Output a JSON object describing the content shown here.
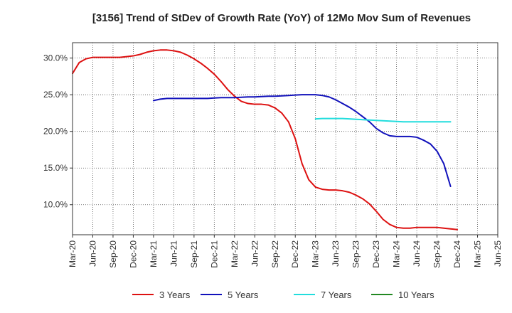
{
  "chart_data": {
    "type": "line",
    "title": "[3156]  Trend of StDev of Growth Rate (YoY) of 12Mo Mov Sum of Revenues",
    "xlabel": "",
    "ylabel": "",
    "ylim": [
      5.9,
      32.1
    ],
    "grid": true,
    "legend_position": "bottom",
    "x_tick_labels": [
      "Mar-20",
      "Jun-20",
      "Sep-20",
      "Dec-20",
      "Mar-21",
      "Jun-21",
      "Sep-21",
      "Dec-21",
      "Mar-22",
      "Jun-22",
      "Sep-22",
      "Dec-22",
      "Mar-23",
      "Jun-23",
      "Sep-23",
      "Dec-23",
      "Mar-24",
      "Jun-24",
      "Sep-24",
      "Dec-24",
      "Mar-25",
      "Jun-25"
    ],
    "y_ticks": [
      10,
      15,
      20,
      25,
      30
    ],
    "y_tick_labels": [
      "10.0%",
      "15.0%",
      "20.0%",
      "25.0%",
      "30.0%"
    ],
    "x_months": [
      "2020-03",
      "2020-04",
      "2020-05",
      "2020-06",
      "2020-07",
      "2020-08",
      "2020-09",
      "2020-10",
      "2020-11",
      "2020-12",
      "2021-01",
      "2021-02",
      "2021-03",
      "2021-04",
      "2021-05",
      "2021-06",
      "2021-07",
      "2021-08",
      "2021-09",
      "2021-10",
      "2021-11",
      "2021-12",
      "2022-01",
      "2022-02",
      "2022-03",
      "2022-04",
      "2022-05",
      "2022-06",
      "2022-07",
      "2022-08",
      "2022-09",
      "2022-10",
      "2022-11",
      "2022-12",
      "2023-01",
      "2023-02",
      "2023-03",
      "2023-04",
      "2023-05",
      "2023-06",
      "2023-07",
      "2023-08",
      "2023-09",
      "2023-10",
      "2023-11",
      "2023-12",
      "2024-01",
      "2024-02",
      "2024-03",
      "2024-04",
      "2024-05",
      "2024-06",
      "2024-07",
      "2024-08",
      "2024-09",
      "2024-10",
      "2024-11",
      "2024-12",
      "2025-01",
      "2025-02",
      "2025-03"
    ],
    "series": [
      {
        "name": "3 Years",
        "color": "#dd1111",
        "start_index": 0,
        "values": [
          27.9,
          29.4,
          29.9,
          30.1,
          30.1,
          30.1,
          30.1,
          30.1,
          30.2,
          30.3,
          30.5,
          30.8,
          31.0,
          31.1,
          31.1,
          31.0,
          30.8,
          30.4,
          29.9,
          29.3,
          28.6,
          27.8,
          26.8,
          25.7,
          24.8,
          24.1,
          23.8,
          23.7,
          23.7,
          23.6,
          23.2,
          22.5,
          21.3,
          19.0,
          15.6,
          13.4,
          12.4,
          12.1,
          12.0,
          12.0,
          11.9,
          11.7,
          11.3,
          10.8,
          10.1,
          9.1,
          8.0,
          7.3,
          6.9,
          6.8,
          6.8,
          6.9,
          6.9,
          6.9,
          6.9,
          6.8,
          6.7,
          6.6
        ]
      },
      {
        "name": "5 Years",
        "color": "#1111bb",
        "start_index": 12,
        "values": [
          24.2,
          24.4,
          24.5,
          24.5,
          24.5,
          24.5,
          24.5,
          24.5,
          24.5,
          24.55,
          24.6,
          24.6,
          24.6,
          24.65,
          24.7,
          24.7,
          24.75,
          24.8,
          24.8,
          24.85,
          24.9,
          24.95,
          25.0,
          25.0,
          25.0,
          24.9,
          24.7,
          24.3,
          23.8,
          23.3,
          22.7,
          22.0,
          21.3,
          20.4,
          19.8,
          19.4,
          19.3,
          19.3,
          19.3,
          19.2,
          18.8,
          18.3,
          17.3,
          15.6,
          12.5
        ]
      },
      {
        "name": "7 Years",
        "color": "#22dddd",
        "start_index": 36,
        "values": [
          21.7,
          21.75,
          21.75,
          21.75,
          21.75,
          21.7,
          21.65,
          21.6,
          21.55,
          21.5,
          21.45,
          21.4,
          21.35,
          21.3,
          21.3,
          21.3,
          21.3,
          21.3,
          21.3,
          21.3,
          21.3
        ]
      },
      {
        "name": "10 Years",
        "color": "#228822",
        "start_index": 0,
        "values": []
      }
    ]
  }
}
